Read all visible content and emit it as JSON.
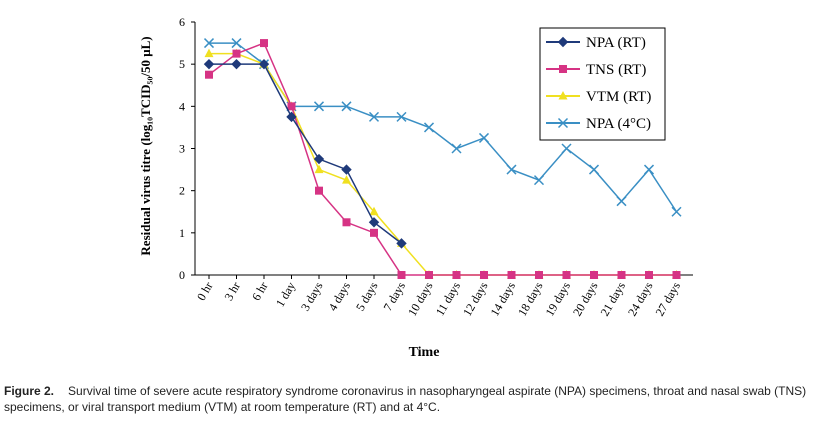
{
  "chart_data": {
    "type": "line",
    "categories": [
      "0 hr",
      "3 hr",
      "6 hr",
      "1 day",
      "3 days",
      "4 days",
      "5 days",
      "7 days",
      "10 days",
      "11 days",
      "12 days",
      "14 days",
      "18 days",
      "19 days",
      "20 days",
      "21 days",
      "24 days",
      "27 days"
    ],
    "ylabel": "Residual virus titre (log₁₀TCID₅₀/50 μL)",
    "xlabel": "Time",
    "ylim": [
      0,
      6
    ],
    "yticks": [
      "0",
      "1",
      "2",
      "3",
      "4",
      "5",
      "6"
    ],
    "legend_position": "top-right",
    "series": [
      {
        "name": "NPA (RT)",
        "color": "#1f3a7a",
        "marker": "diamond",
        "values": [
          5,
          5,
          5,
          3.75,
          2.75,
          2.5,
          1.25,
          0.75,
          null,
          null,
          null,
          null,
          null,
          null,
          null,
          null,
          null,
          null
        ]
      },
      {
        "name": "TNS (RT)",
        "color": "#d63384",
        "marker": "square",
        "values": [
          4.75,
          5.25,
          5.5,
          4,
          2,
          1.25,
          1,
          0,
          0,
          0,
          0,
          0,
          0,
          0,
          0,
          0,
          0,
          0
        ]
      },
      {
        "name": "VTM (RT)",
        "color": "#f0e020",
        "marker": "triangle",
        "values": [
          5.25,
          5.25,
          5,
          4,
          2.5,
          2.25,
          1.5,
          0.75,
          0,
          0,
          0,
          0,
          0,
          0,
          0,
          0,
          0,
          0
        ]
      },
      {
        "name": "NPA (4°C)",
        "color": "#3a8fc4",
        "marker": "x",
        "values": [
          5.5,
          5.5,
          5,
          4,
          4,
          4,
          3.75,
          3.75,
          3.5,
          3,
          3.25,
          2.5,
          2.25,
          3,
          2.5,
          1.75,
          2.5,
          1.5
        ]
      }
    ]
  },
  "caption": {
    "label": "Figure 2.",
    "text": "Survival time of severe acute respiratory syndrome coronavirus in nasopharyngeal aspirate (NPA) specimens, throat and nasal swab (TNS) specimens, or viral transport medium (VTM) at room temperature (RT) and at 4°C."
  }
}
